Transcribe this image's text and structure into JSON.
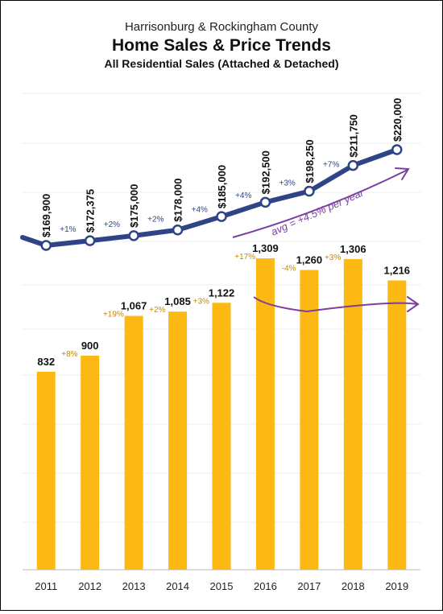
{
  "chart_data": {
    "type": "bar",
    "title_line1": "Harrisonburg & Rockingham County",
    "title": "Home Sales & Price Trends",
    "subtitle": "All Residential Sales (Attached & Detached)",
    "categories": [
      "2011",
      "2012",
      "2013",
      "2014",
      "2015",
      "2016",
      "2017",
      "2018",
      "2019"
    ],
    "grid": true,
    "series": [
      {
        "kind": "bar",
        "values": [
          832,
          900,
          1067,
          1085,
          1122,
          1309,
          1260,
          1306,
          1216
        ],
        "labels": [
          "832",
          "900",
          "1,067",
          "1,085",
          "1,122",
          "1,309",
          "1,260",
          "1,306",
          "1,216"
        ],
        "changes": [
          "+8%",
          "+19%",
          "+2%",
          "+3%",
          "+17%",
          "-4%",
          "+3%"
        ],
        "color": "#FDB913"
      },
      {
        "kind": "line",
        "values": [
          169900,
          172375,
          175000,
          178000,
          185000,
          192500,
          198250,
          211750,
          220000
        ],
        "labels": [
          "$169,900",
          "$172,375",
          "$175,000",
          "$178,000",
          "$185,000",
          "$192,500",
          "$198,250",
          "$211,750",
          "$220,000"
        ],
        "changes": [
          "+1%",
          "+2%",
          "+2%",
          "+4%",
          "+4%",
          "+3%",
          "+7%"
        ],
        "color": "#2E4486"
      }
    ],
    "annotation": "avg = +4.5% per year",
    "annotation_color": "#7B3FA0"
  }
}
